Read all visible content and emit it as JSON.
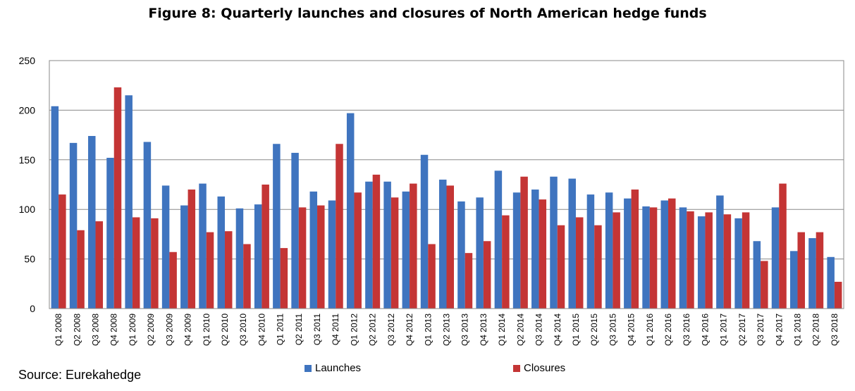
{
  "chart_data": {
    "type": "bar",
    "title": "Figure 8: Quarterly launches and closures of North American hedge funds",
    "xlabel": "",
    "ylabel": "",
    "ylim": [
      0,
      250
    ],
    "yticks": [
      0,
      50,
      100,
      150,
      200,
      250
    ],
    "grid": true,
    "legend_position": "bottom",
    "categories": [
      "Q1 2008",
      "Q2 2008",
      "Q3 2008",
      "Q4 2008",
      "Q1 2009",
      "Q2 2009",
      "Q3 2009",
      "Q4 2009",
      "Q1 2010",
      "Q2 2010",
      "Q3 2010",
      "Q4 2010",
      "Q1 2011",
      "Q2 2011",
      "Q3 2011",
      "Q4 2011",
      "Q1 2012",
      "Q2 2012",
      "Q3 2012",
      "Q4 2012",
      "Q1 2013",
      "Q2 2013",
      "Q3 2013",
      "Q4 2013",
      "Q1 2014",
      "Q2 2014",
      "Q3 2014",
      "Q4 2014",
      "Q1 2015",
      "Q2 2015",
      "Q3 2015",
      "Q4 2015",
      "Q1 2016",
      "Q2 2016",
      "Q3 2016",
      "Q4 2016",
      "Q1 2017",
      "Q2 2017",
      "Q3 2017",
      "Q4 2017",
      "Q1 2018",
      "Q2 2018",
      "Q3 2018"
    ],
    "series": [
      {
        "name": "Launches",
        "color": "#3F74BF",
        "values": [
          204,
          167,
          174,
          152,
          215,
          168,
          124,
          104,
          126,
          113,
          101,
          105,
          166,
          157,
          118,
          109,
          197,
          128,
          128,
          118,
          155,
          130,
          108,
          112,
          139,
          117,
          120,
          133,
          131,
          115,
          117,
          111,
          103,
          109,
          102,
          93,
          114,
          91,
          68,
          102,
          58,
          71,
          52
        ]
      },
      {
        "name": "Closures",
        "color": "#C43535",
        "values": [
          115,
          79,
          88,
          223,
          92,
          91,
          57,
          120,
          77,
          78,
          65,
          125,
          61,
          102,
          104,
          166,
          117,
          135,
          112,
          126,
          65,
          124,
          56,
          68,
          94,
          133,
          110,
          84,
          92,
          84,
          97,
          120,
          102,
          111,
          98,
          97,
          95,
          97,
          48,
          126,
          77,
          77,
          27
        ]
      }
    ],
    "source": "Source: Eurekahedge"
  }
}
